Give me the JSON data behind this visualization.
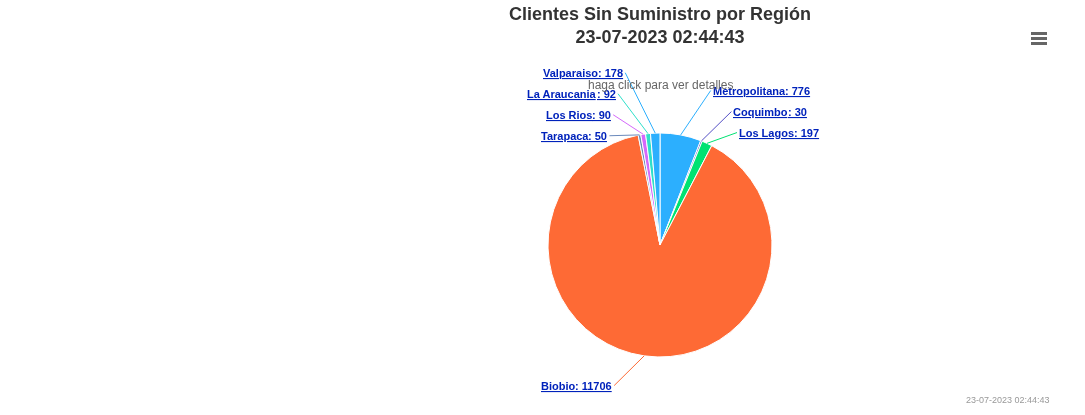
{
  "chart_data": {
    "type": "pie",
    "title": "Clientes Sin Suministro por Región\n23-07-2023 02:44:43",
    "subtitle": "haga click para ver detalles",
    "categories": [
      "Metropolitana",
      "Coquimbo",
      "Los Lagos",
      "Biobio",
      "Tarapaca",
      "Los Rios",
      "La Araucania",
      "Valparaiso"
    ],
    "values": [
      776,
      30,
      197,
      11706,
      50,
      90,
      92,
      178
    ],
    "colors": [
      "#2caffe",
      "#544fc5",
      "#00e272",
      "#fe6a35",
      "#6b8abc",
      "#d568fb",
      "#2ee0ca",
      "#2caffe"
    ],
    "value_labels": [
      ": 776",
      ": 30",
      ": 197",
      ": 11706",
      ": 50",
      ": 90",
      ": 92",
      ": 178"
    ],
    "legend": false,
    "annotations": [
      "23-07-2023 02:44:43"
    ]
  }
}
